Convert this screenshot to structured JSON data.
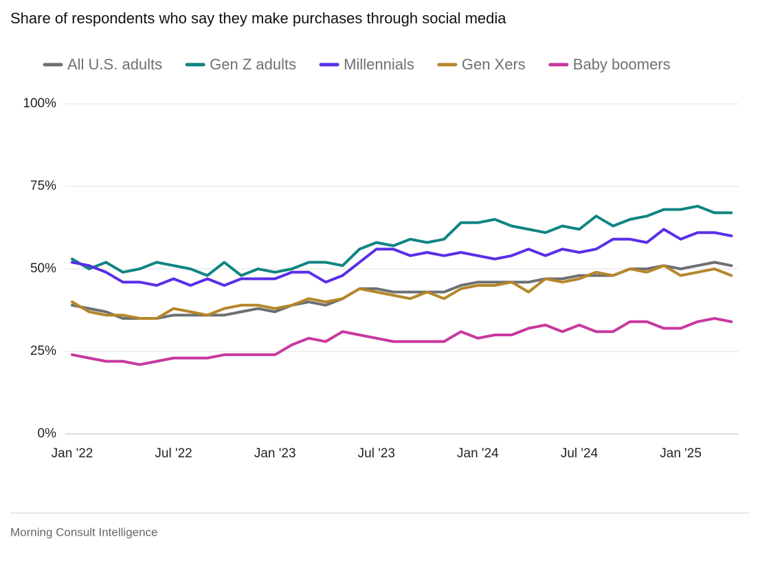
{
  "chart_data": {
    "type": "line",
    "title": "Share of respondents who say they make purchases through social media",
    "source": "Morning Consult Intelligence",
    "categories": [
      "Jan '22",
      null,
      null,
      null,
      null,
      null,
      "Jul '22",
      null,
      null,
      null,
      null,
      null,
      "Jan '23",
      null,
      null,
      null,
      null,
      null,
      "Jul '23",
      null,
      null,
      null,
      null,
      null,
      "Jan '24",
      null,
      null,
      null,
      null,
      null,
      "Jul '24",
      null,
      null,
      null,
      null,
      null,
      "Jan '25",
      null,
      null,
      null
    ],
    "ylim": [
      0,
      100
    ],
    "yticks": [
      {
        "value": 0,
        "label": "0%"
      },
      {
        "value": 25,
        "label": "25%"
      },
      {
        "value": 50,
        "label": "50%"
      },
      {
        "value": 75,
        "label": "75%"
      },
      {
        "value": 100,
        "label": "100%"
      }
    ],
    "grid": true,
    "legend": "top",
    "series": [
      {
        "name": "All U.S. adults",
        "color": "#6d7072",
        "values": [
          39,
          38,
          37,
          35,
          35,
          35,
          36,
          36,
          36,
          36,
          37,
          38,
          37,
          39,
          40,
          39,
          41,
          44,
          44,
          43,
          43,
          43,
          43,
          45,
          46,
          46,
          46,
          46,
          47,
          47,
          48,
          48,
          48,
          50,
          50,
          51,
          50,
          51,
          52,
          51
        ]
      },
      {
        "name": "Gen Z adults",
        "color": "#0f8582",
        "values": [
          53,
          50,
          52,
          49,
          50,
          52,
          51,
          50,
          48,
          52,
          48,
          50,
          49,
          50,
          52,
          52,
          51,
          56,
          58,
          57,
          59,
          58,
          59,
          64,
          64,
          65,
          63,
          62,
          61,
          63,
          62,
          66,
          63,
          65,
          66,
          68,
          68,
          69,
          67,
          67
        ]
      },
      {
        "name": "Millennials",
        "color": "#5a2ee8",
        "values": [
          52,
          51,
          49,
          46,
          46,
          45,
          47,
          45,
          47,
          45,
          47,
          47,
          47,
          49,
          49,
          46,
          48,
          52,
          56,
          56,
          54,
          55,
          54,
          55,
          54,
          53,
          54,
          56,
          54,
          56,
          55,
          56,
          59,
          59,
          58,
          62,
          59,
          61,
          61,
          60
        ]
      },
      {
        "name": "Gen Xers",
        "color": "#b5862a",
        "values": [
          40,
          37,
          36,
          36,
          35,
          35,
          38,
          37,
          36,
          38,
          39,
          39,
          38,
          39,
          41,
          40,
          41,
          44,
          43,
          42,
          41,
          43,
          41,
          44,
          45,
          45,
          46,
          43,
          47,
          46,
          47,
          49,
          48,
          50,
          49,
          51,
          48,
          49,
          50,
          48
        ]
      },
      {
        "name": "Baby boomers",
        "color": "#c8389f",
        "values": [
          24,
          23,
          22,
          22,
          21,
          22,
          23,
          23,
          23,
          24,
          24,
          24,
          24,
          27,
          29,
          28,
          31,
          30,
          29,
          28,
          28,
          28,
          28,
          31,
          29,
          30,
          30,
          32,
          33,
          31,
          33,
          31,
          31,
          34,
          34,
          32,
          32,
          34,
          35,
          34
        ]
      }
    ]
  }
}
